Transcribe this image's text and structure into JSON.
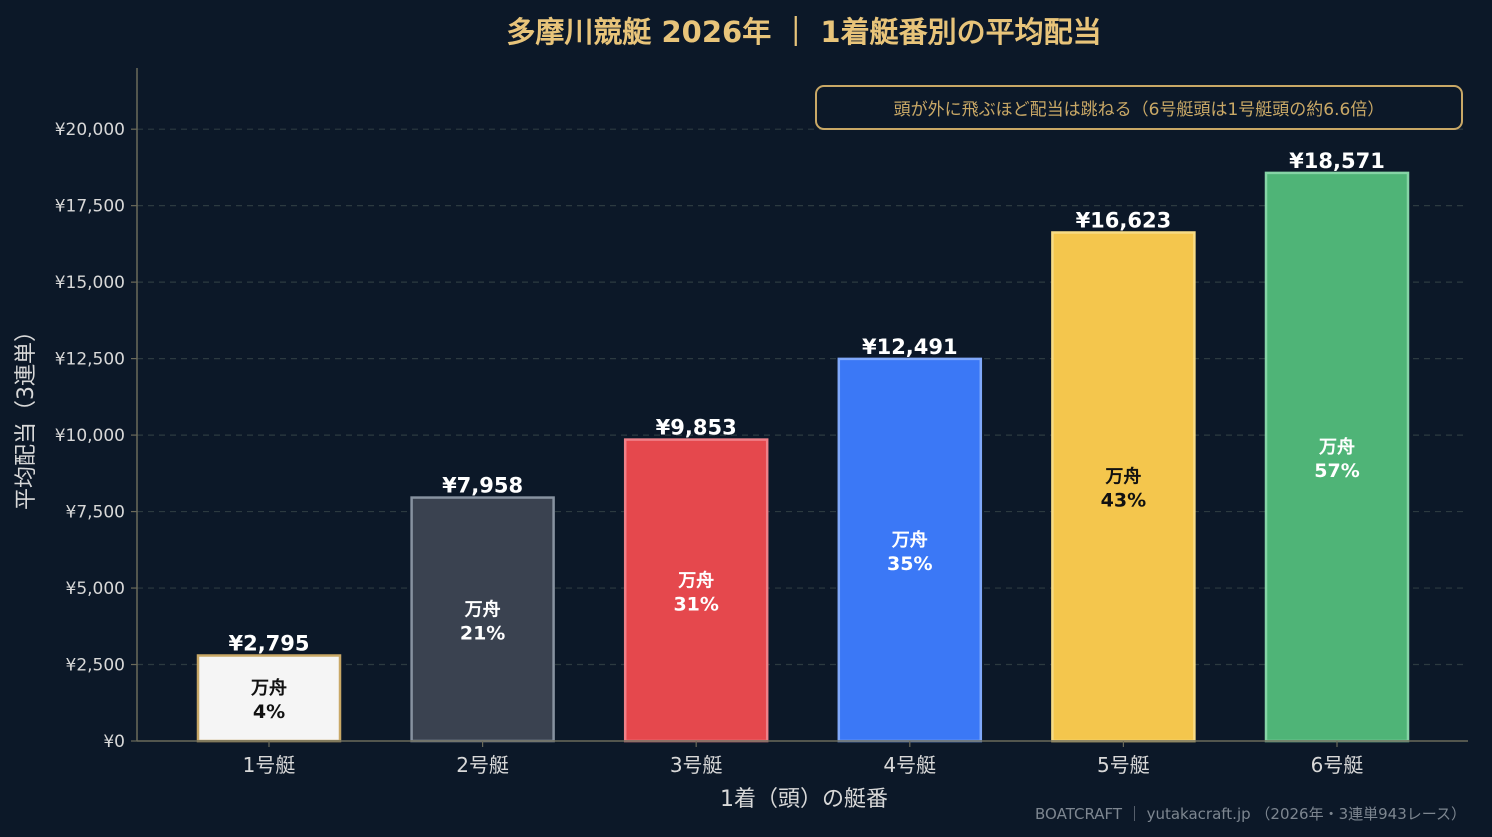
{
  "chart_data": {
    "type": "bar",
    "title": "多摩川競艇 2026年 ｜ 1着艇番別の平均配当",
    "xlabel": "1着（頭）の艇番",
    "ylabel": "平均配当（3連単）",
    "ylim": [
      0,
      22000
    ],
    "yticks": [
      0,
      2500,
      5000,
      7500,
      10000,
      12500,
      15000,
      17500,
      20000
    ],
    "ytick_labels": [
      "¥0",
      "¥2,500",
      "¥5,000",
      "¥7,500",
      "¥10,000",
      "¥12,500",
      "¥15,000",
      "¥17,500",
      "¥20,000"
    ],
    "grid": true,
    "categories": [
      "1号艇",
      "2号艇",
      "3号艇",
      "4号艇",
      "5号艇",
      "6号艇"
    ],
    "values": [
      2795,
      7958,
      9853,
      12491,
      16623,
      18571
    ],
    "value_labels": [
      "¥2,795",
      "¥7,958",
      "¥9,853",
      "¥12,491",
      "¥16,623",
      "¥18,571"
    ],
    "manshu_label": "万舟",
    "manshu_pct": [
      "4%",
      "21%",
      "31%",
      "35%",
      "43%",
      "57%"
    ],
    "bar_colors": [
      "#f5f5f5",
      "#3a4250",
      "#e5484d",
      "#3b78f6",
      "#f4c64d",
      "#4fb477"
    ],
    "bar_edge_colors": [
      "#c9a866",
      "#8792a0",
      "#f08088",
      "#7fa8fb",
      "#f8dc85",
      "#86d4a6"
    ],
    "inner_text_colors": [
      "#111111",
      "#ffffff",
      "#ffffff",
      "#ffffff",
      "#111111",
      "#ffffff"
    ],
    "annotation": "頭が外に飛ぶほど配当は跳ねる（6号艇頭は1号艇頭の約6.6倍）",
    "footer": "BOATCRAFT ｜ yutakacraft.jp （2026年・3連単943レース）"
  },
  "colors": {
    "background": "#0c1828",
    "title": "#e8c47a",
    "grid": "#2c3a40",
    "axis": "#6b6a5a",
    "tick_text": "#d8d8d8",
    "value_text": "#ffffff",
    "annotation_border": "#c9a866",
    "annotation_text": "#c9a866",
    "footer_text": "#7d8690"
  }
}
